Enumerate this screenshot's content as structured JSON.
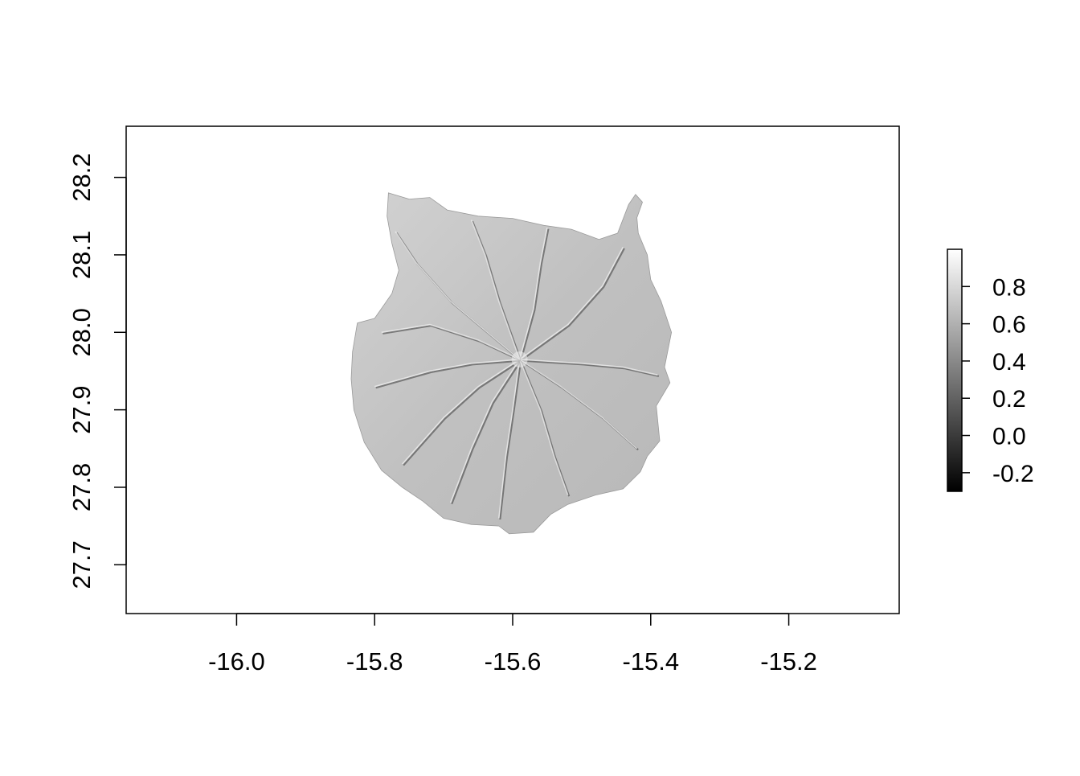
{
  "chart_data": {
    "type": "heatmap",
    "subtype": "raster-hillshade-map",
    "title": "",
    "xlabel": "",
    "ylabel": "",
    "x_ticks": [
      "-16.0",
      "-15.8",
      "-15.6",
      "-15.4",
      "-15.2"
    ],
    "y_ticks": [
      "27.7",
      "27.8",
      "27.9",
      "28.0",
      "28.1",
      "28.2"
    ],
    "xlim": [
      -16.16,
      -15.04
    ],
    "ylim": [
      27.637,
      28.266
    ],
    "colorbar": {
      "palette": "grey",
      "range": [
        -0.3,
        1.0
      ],
      "tick_labels": [
        "-0.2",
        "0.0",
        "0.2",
        "0.4",
        "0.6",
        "0.8"
      ],
      "low_color": "#000000",
      "high_color": "#ffffff"
    },
    "grid": false,
    "legend_position": "right",
    "raster": {
      "fill_color": "#c4c4c4",
      "ridge_light_color": "#ececec",
      "valley_shadow_color": "#3a3a3a",
      "summit": [
        -15.59,
        27.965
      ],
      "outline": [
        [
          -15.78,
          28.18
        ],
        [
          -15.75,
          28.172
        ],
        [
          -15.72,
          28.174
        ],
        [
          -15.695,
          28.158
        ],
        [
          -15.65,
          28.15
        ],
        [
          -15.6,
          28.147
        ],
        [
          -15.555,
          28.138
        ],
        [
          -15.515,
          28.133
        ],
        [
          -15.475,
          28.12
        ],
        [
          -15.448,
          28.128
        ],
        [
          -15.432,
          28.165
        ],
        [
          -15.422,
          28.178
        ],
        [
          -15.412,
          28.168
        ],
        [
          -15.42,
          28.148
        ],
        [
          -15.418,
          28.128
        ],
        [
          -15.405,
          28.1
        ],
        [
          -15.4,
          28.068
        ],
        [
          -15.385,
          28.04
        ],
        [
          -15.37,
          28.0
        ],
        [
          -15.38,
          27.955
        ],
        [
          -15.372,
          27.935
        ],
        [
          -15.392,
          27.905
        ],
        [
          -15.387,
          27.86
        ],
        [
          -15.405,
          27.84
        ],
        [
          -15.415,
          27.82
        ],
        [
          -15.44,
          27.798
        ],
        [
          -15.48,
          27.79
        ],
        [
          -15.52,
          27.778
        ],
        [
          -15.545,
          27.765
        ],
        [
          -15.57,
          27.742
        ],
        [
          -15.605,
          27.74
        ],
        [
          -15.62,
          27.75
        ],
        [
          -15.66,
          27.752
        ],
        [
          -15.7,
          27.76
        ],
        [
          -15.73,
          27.782
        ],
        [
          -15.76,
          27.8
        ],
        [
          -15.79,
          27.822
        ],
        [
          -15.815,
          27.858
        ],
        [
          -15.83,
          27.9
        ],
        [
          -15.834,
          27.94
        ],
        [
          -15.832,
          27.975
        ],
        [
          -15.825,
          28.012
        ],
        [
          -15.8,
          28.018
        ],
        [
          -15.775,
          28.05
        ],
        [
          -15.765,
          28.08
        ],
        [
          -15.775,
          28.115
        ],
        [
          -15.782,
          28.15
        ]
      ],
      "ravines": [
        [
          [
            -15.59,
            27.965
          ],
          [
            -15.6,
            27.9
          ],
          [
            -15.61,
            27.84
          ],
          [
            -15.62,
            27.76
          ]
        ],
        [
          [
            -15.59,
            27.965
          ],
          [
            -15.63,
            27.91
          ],
          [
            -15.66,
            27.85
          ],
          [
            -15.69,
            27.78
          ]
        ],
        [
          [
            -15.59,
            27.965
          ],
          [
            -15.65,
            27.93
          ],
          [
            -15.7,
            27.89
          ],
          [
            -15.76,
            27.83
          ]
        ],
        [
          [
            -15.59,
            27.965
          ],
          [
            -15.66,
            27.96
          ],
          [
            -15.72,
            27.95
          ],
          [
            -15.8,
            27.93
          ]
        ],
        [
          [
            -15.59,
            27.965
          ],
          [
            -15.65,
            27.99
          ],
          [
            -15.72,
            28.01
          ],
          [
            -15.79,
            28.0
          ]
        ],
        [
          [
            -15.59,
            27.965
          ],
          [
            -15.56,
            27.9
          ],
          [
            -15.54,
            27.84
          ],
          [
            -15.52,
            27.79
          ]
        ],
        [
          [
            -15.59,
            27.965
          ],
          [
            -15.57,
            28.03
          ],
          [
            -15.56,
            28.09
          ],
          [
            -15.55,
            28.135
          ]
        ],
        [
          [
            -15.59,
            27.965
          ],
          [
            -15.52,
            28.01
          ],
          [
            -15.47,
            28.06
          ],
          [
            -15.44,
            28.11
          ]
        ],
        [
          [
            -15.59,
            27.965
          ],
          [
            -15.62,
            28.04
          ],
          [
            -15.64,
            28.1
          ],
          [
            -15.66,
            28.145
          ]
        ],
        [
          [
            -15.59,
            27.965
          ],
          [
            -15.5,
            27.96
          ],
          [
            -15.44,
            27.955
          ],
          [
            -15.39,
            27.945
          ]
        ],
        [
          [
            -15.59,
            27.965
          ],
          [
            -15.53,
            27.93
          ],
          [
            -15.47,
            27.89
          ],
          [
            -15.42,
            27.85
          ]
        ],
        [
          [
            -15.59,
            27.965
          ],
          [
            -15.69,
            28.04
          ],
          [
            -15.74,
            28.09
          ],
          [
            -15.77,
            28.13
          ]
        ]
      ]
    }
  }
}
